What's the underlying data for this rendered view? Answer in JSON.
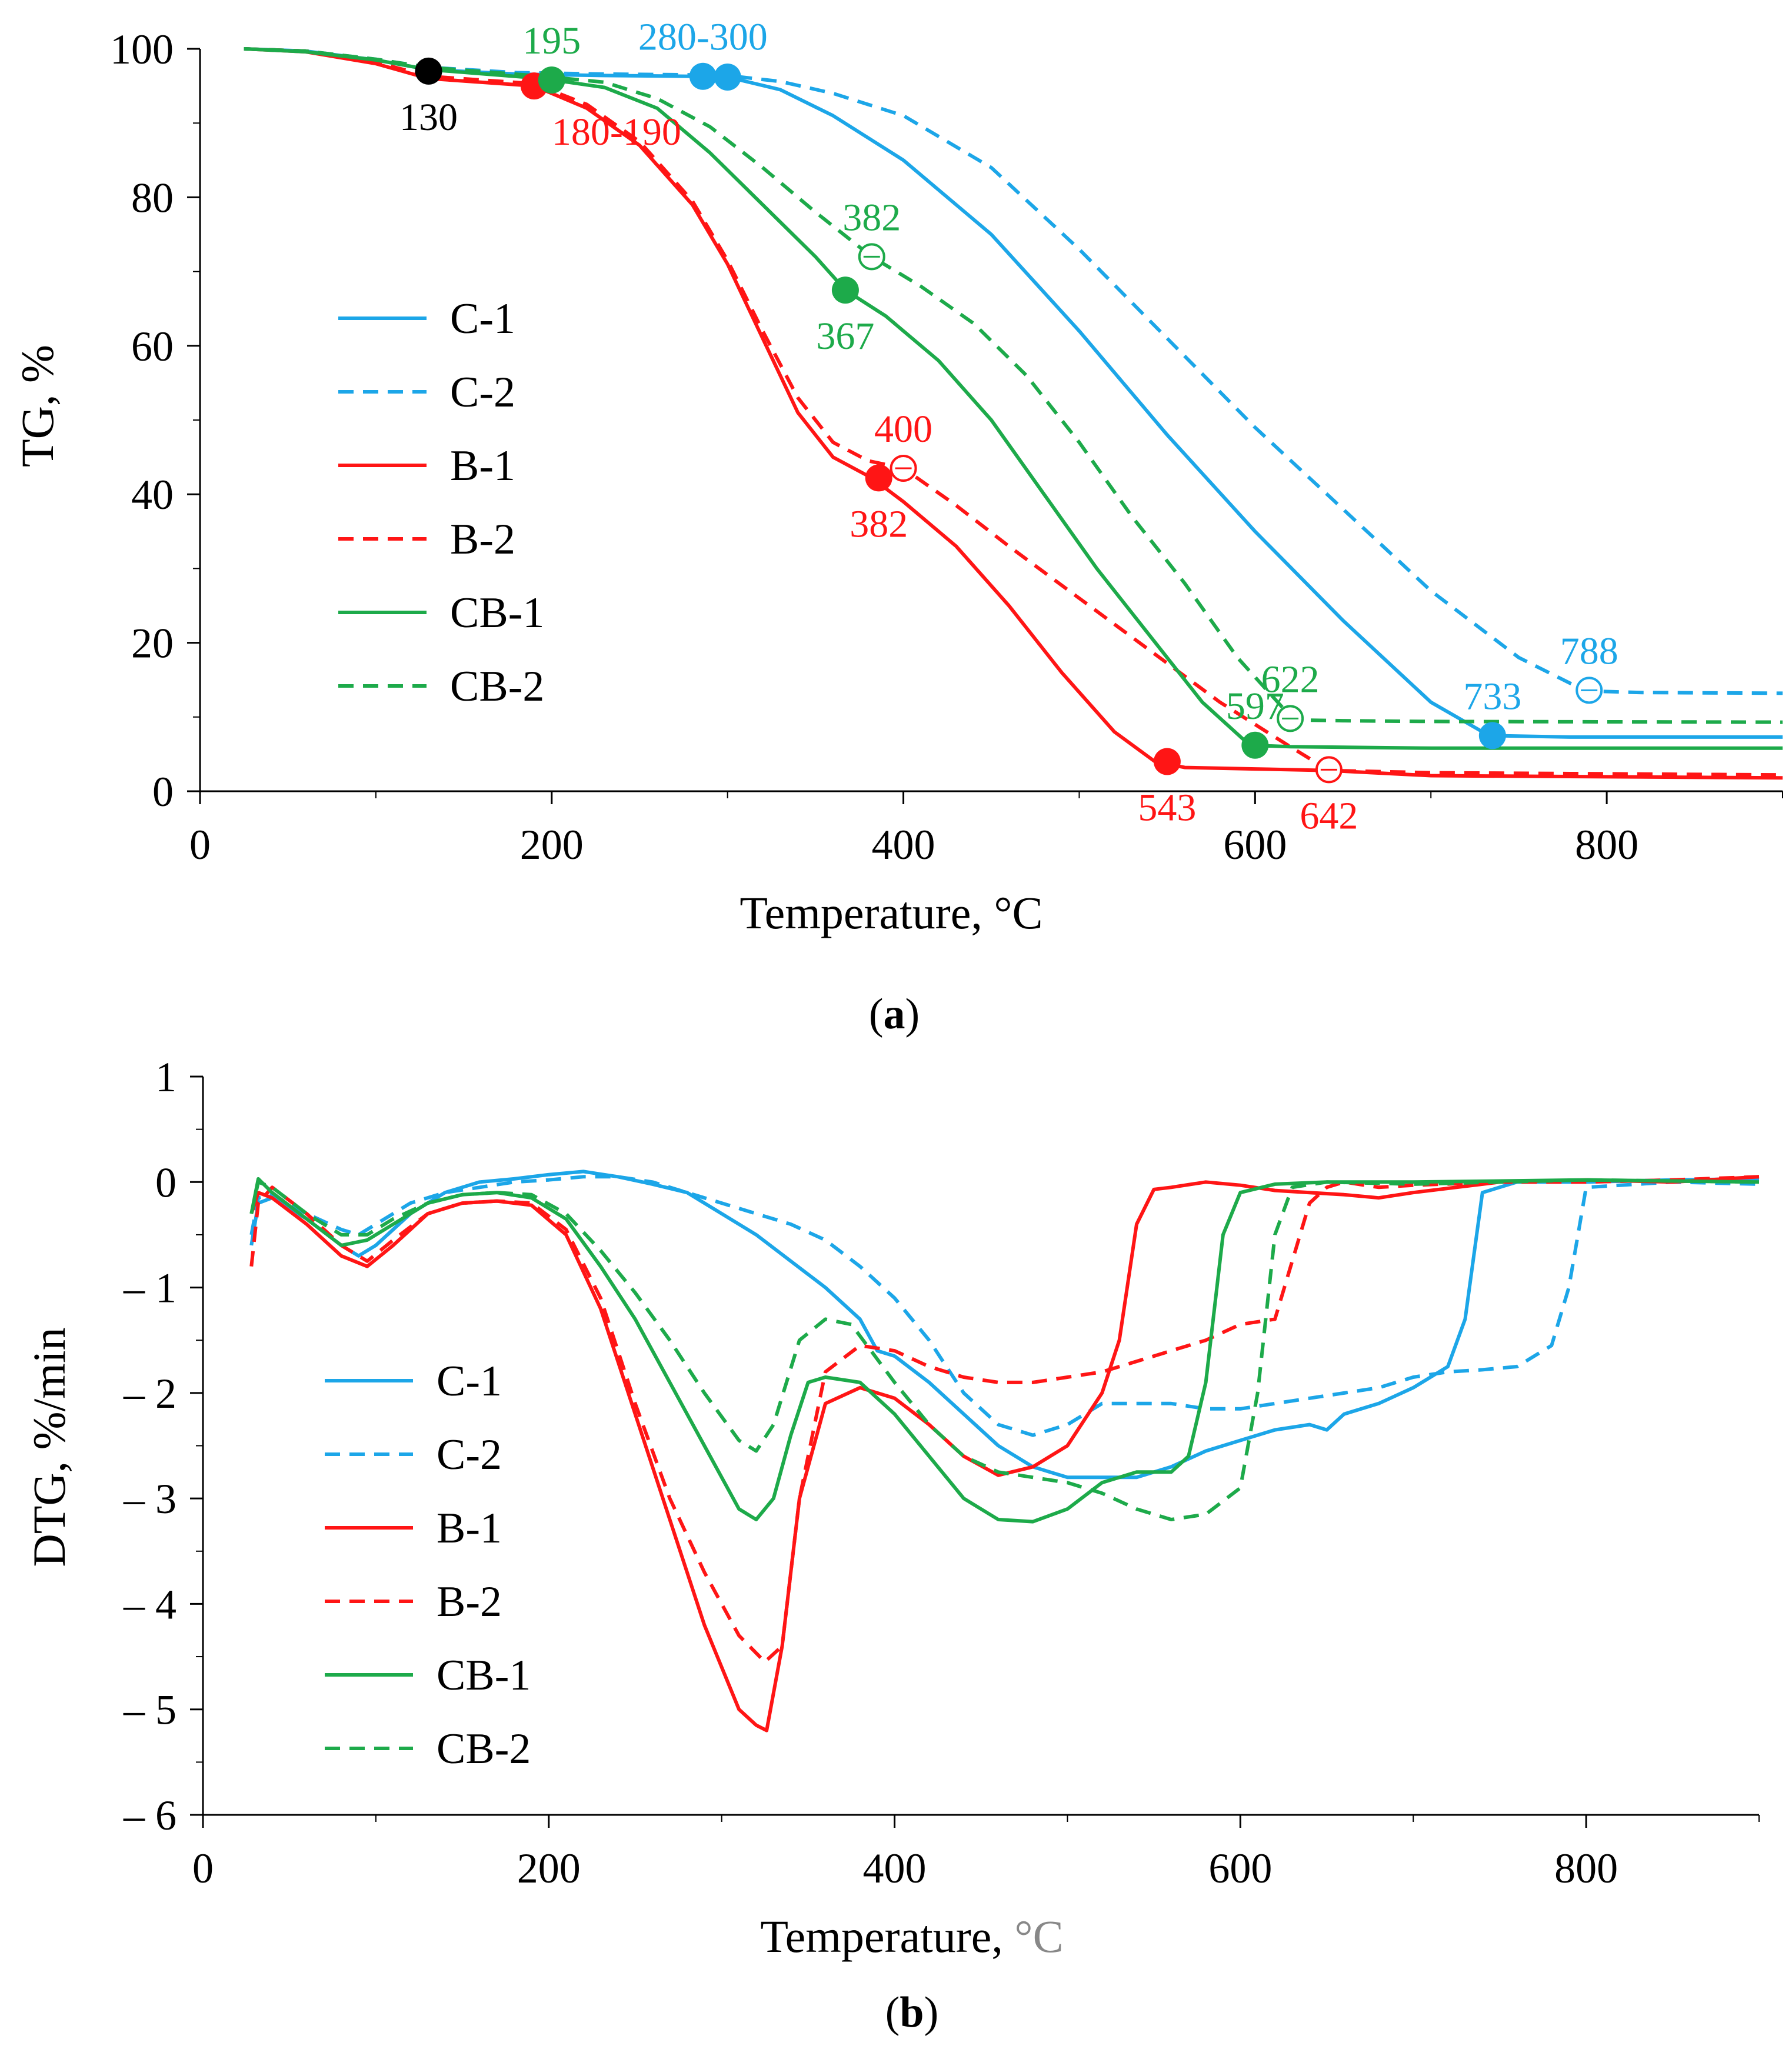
{
  "colors": {
    "C": "#1CA6E8",
    "B": "#FF1515",
    "CB": "#1DAA4A",
    "black": "#000000"
  },
  "legend": [
    "C-1",
    "C-2",
    "B-1",
    "B-2",
    "CB-1",
    "CB-2"
  ],
  "chart_data": [
    {
      "type": "line",
      "caption_letter": "a",
      "title": "",
      "xlabel": "Temperature, °C",
      "ylabel": "TG, %",
      "xlim": [
        0,
        900
      ],
      "ylim": [
        0,
        100
      ],
      "xticks": [
        0,
        200,
        400,
        600,
        800
      ],
      "yticks": [
        0,
        20,
        40,
        60,
        80,
        100
      ],
      "series": [
        {
          "name": "C-1",
          "color": "C",
          "dashed": false,
          "x": [
            25,
            60,
            100,
            130,
            180,
            230,
            280,
            300,
            330,
            360,
            400,
            450,
            500,
            550,
            600,
            650,
            700,
            733,
            780,
            900
          ],
          "y": [
            100,
            99.7,
            98.5,
            97.2,
            96.6,
            96.4,
            96.3,
            96.2,
            94.5,
            91,
            85,
            75,
            62,
            48,
            35,
            23,
            12,
            7.5,
            7.3,
            7.3
          ]
        },
        {
          "name": "C-2",
          "color": "C",
          "dashed": true,
          "x": [
            25,
            60,
            100,
            130,
            180,
            230,
            280,
            300,
            330,
            360,
            400,
            450,
            500,
            550,
            600,
            650,
            700,
            750,
            788,
            820,
            900
          ],
          "y": [
            100,
            99.7,
            98.6,
            97.5,
            96.8,
            96.6,
            96.5,
            96.4,
            95.6,
            94,
            91,
            84,
            73,
            61,
            49,
            38,
            27,
            18,
            13.5,
            13.3,
            13.2
          ]
        },
        {
          "name": "B-1",
          "color": "B",
          "dashed": false,
          "x": [
            25,
            60,
            100,
            130,
            190,
            220,
            250,
            280,
            300,
            320,
            340,
            360,
            382,
            400,
            430,
            460,
            490,
            520,
            543,
            560,
            600,
            642,
            700,
            900
          ],
          "y": [
            100,
            99.6,
            98,
            96,
            95,
            92,
            87,
            79,
            71,
            61,
            51,
            45,
            42.2,
            39,
            33,
            25,
            16,
            8,
            4,
            3.2,
            3,
            2.8,
            2.1,
            1.8
          ]
        },
        {
          "name": "B-2",
          "color": "B",
          "dashed": true,
          "x": [
            25,
            60,
            100,
            130,
            190,
            220,
            250,
            280,
            300,
            320,
            340,
            360,
            380,
            400,
            430,
            460,
            500,
            540,
            580,
            620,
            642,
            700,
            900
          ],
          "y": [
            100,
            99.7,
            98.2,
            96.3,
            95.3,
            92.5,
            87.5,
            79.5,
            71.5,
            62,
            53,
            47,
            44.5,
            43.5,
            38.5,
            33,
            26,
            19,
            12,
            6,
            2.8,
            2.5,
            2.2
          ]
        },
        {
          "name": "CB-1",
          "color": "CB",
          "dashed": false,
          "x": [
            25,
            60,
            100,
            130,
            195,
            230,
            260,
            290,
            320,
            350,
            367,
            390,
            420,
            450,
            480,
            510,
            540,
            570,
            597,
            620,
            700,
            900
          ],
          "y": [
            100,
            99.6,
            98.5,
            97.2,
            96,
            94.8,
            92,
            86,
            79,
            72,
            67.5,
            64,
            58,
            50,
            40,
            30,
            21,
            12,
            6.2,
            6,
            5.8,
            5.8
          ]
        },
        {
          "name": "CB-2",
          "color": "CB",
          "dashed": true,
          "x": [
            25,
            60,
            100,
            130,
            195,
            230,
            260,
            290,
            320,
            350,
            382,
            410,
            440,
            470,
            500,
            530,
            560,
            590,
            622,
            650,
            700,
            900
          ],
          "y": [
            100,
            99.7,
            98.6,
            97.5,
            96.3,
            95.5,
            93.3,
            89.5,
            84,
            78,
            72,
            68,
            63,
            56,
            47,
            37,
            28,
            18,
            9.6,
            9.5,
            9.4,
            9.3
          ]
        }
      ],
      "markers": [
        {
          "x": 130,
          "y": 97,
          "color": "black",
          "filled": true,
          "label": "130",
          "label_pos": "below"
        },
        {
          "x": 190,
          "y": 95,
          "color": "B",
          "filled": true,
          "label": "180-190",
          "label_pos": "below-right"
        },
        {
          "x": 200,
          "y": 95.8,
          "color": "CB",
          "filled": true,
          "label": "195",
          "label_pos": "above"
        },
        {
          "x": 286,
          "y": 96.3,
          "color": "C",
          "filled": true,
          "label": "280-300",
          "label_pos": "above"
        },
        {
          "x": 300,
          "y": 96.2,
          "color": "C",
          "filled": true,
          "label": "",
          "label_pos": "none"
        },
        {
          "x": 367,
          "y": 67.5,
          "color": "CB",
          "filled": true,
          "label": "367",
          "label_pos": "below"
        },
        {
          "x": 382,
          "y": 72,
          "color": "CB",
          "filled": false,
          "label": "382",
          "label_pos": "above"
        },
        {
          "x": 386,
          "y": 42.2,
          "color": "B",
          "filled": true,
          "label": "382",
          "label_pos": "below"
        },
        {
          "x": 400,
          "y": 43.5,
          "color": "B",
          "filled": false,
          "label": "400",
          "label_pos": "above"
        },
        {
          "x": 550,
          "y": 4,
          "color": "B",
          "filled": true,
          "label": "543",
          "label_pos": "below"
        },
        {
          "x": 600,
          "y": 6.2,
          "color": "CB",
          "filled": true,
          "label": "597",
          "label_pos": "above"
        },
        {
          "x": 620,
          "y": 9.8,
          "color": "CB",
          "filled": false,
          "label": "622",
          "label_pos": "above"
        },
        {
          "x": 642,
          "y": 2.9,
          "color": "B",
          "filled": false,
          "label": "642",
          "label_pos": "below"
        },
        {
          "x": 735,
          "y": 7.5,
          "color": "C",
          "filled": true,
          "label": "733",
          "label_pos": "above"
        },
        {
          "x": 790,
          "y": 13.6,
          "color": "C",
          "filled": false,
          "label": "788",
          "label_pos": "above"
        }
      ]
    },
    {
      "type": "line",
      "caption_letter": "b",
      "title": "",
      "xlabel": "Temperature, ",
      "xlabel_unit": "°C",
      "ylabel": "DTG, %/min",
      "xlim": [
        0,
        900
      ],
      "ylim": [
        -6,
        1
      ],
      "xticks": [
        0,
        200,
        400,
        600,
        800
      ],
      "yticks": [
        1,
        0,
        -1,
        -2,
        -3,
        -4,
        -5,
        -6
      ],
      "ytick_labels": [
        "1",
        "0",
        "– 1",
        "– 2",
        "– 3",
        "– 4",
        "– 5",
        "– 6"
      ],
      "series": [
        {
          "name": "C-1",
          "color": "C",
          "dashed": false,
          "x": [
            28,
            32,
            40,
            60,
            80,
            90,
            100,
            120,
            140,
            160,
            180,
            200,
            220,
            240,
            260,
            280,
            300,
            320,
            340,
            360,
            380,
            390,
            400,
            420,
            440,
            460,
            480,
            500,
            520,
            540,
            560,
            580,
            600,
            620,
            640,
            650,
            660,
            680,
            700,
            720,
            730,
            740,
            760,
            800,
            850,
            900
          ],
          "y": [
            -0.6,
            -0.2,
            -0.15,
            -0.35,
            -0.6,
            -0.7,
            -0.6,
            -0.3,
            -0.1,
            0,
            0.03,
            0.07,
            0.1,
            0.05,
            -0.02,
            -0.1,
            -0.3,
            -0.5,
            -0.75,
            -1.0,
            -1.3,
            -1.6,
            -1.65,
            -1.9,
            -2.2,
            -2.5,
            -2.7,
            -2.8,
            -2.8,
            -2.8,
            -2.7,
            -2.55,
            -2.45,
            -2.35,
            -2.3,
            -2.35,
            -2.2,
            -2.1,
            -1.95,
            -1.75,
            -1.3,
            -0.1,
            0,
            0,
            0.02,
            0.03
          ]
        },
        {
          "name": "C-2",
          "color": "C",
          "dashed": true,
          "x": [
            28,
            32,
            40,
            60,
            80,
            90,
            100,
            120,
            140,
            160,
            180,
            200,
            220,
            240,
            260,
            280,
            300,
            320,
            340,
            360,
            380,
            400,
            420,
            440,
            460,
            480,
            500,
            520,
            540,
            560,
            580,
            600,
            620,
            640,
            660,
            680,
            700,
            720,
            740,
            760,
            780,
            790,
            800,
            850,
            900
          ],
          "y": [
            -0.5,
            -0.15,
            -0.12,
            -0.3,
            -0.45,
            -0.5,
            -0.4,
            -0.2,
            -0.1,
            -0.05,
            0,
            0.02,
            0.05,
            0.05,
            0,
            -0.1,
            -0.2,
            -0.3,
            -0.4,
            -0.55,
            -0.8,
            -1.1,
            -1.5,
            -2.0,
            -2.3,
            -2.4,
            -2.3,
            -2.1,
            -2.1,
            -2.1,
            -2.15,
            -2.15,
            -2.1,
            -2.05,
            -2.0,
            -1.95,
            -1.85,
            -1.8,
            -1.78,
            -1.75,
            -1.55,
            -1.0,
            -0.05,
            0,
            -0.02
          ]
        },
        {
          "name": "B-1",
          "color": "B",
          "dashed": false,
          "x": [
            28,
            32,
            40,
            60,
            80,
            95,
            110,
            130,
            150,
            170,
            190,
            210,
            230,
            250,
            270,
            290,
            300,
            310,
            320,
            326,
            335,
            345,
            360,
            380,
            400,
            420,
            440,
            460,
            480,
            500,
            520,
            530,
            540,
            550,
            560,
            580,
            600,
            620,
            640,
            660,
            680,
            700,
            750,
            800,
            850,
            900
          ],
          "y": [
            -0.3,
            -0.1,
            -0.15,
            -0.4,
            -0.7,
            -0.8,
            -0.6,
            -0.3,
            -0.2,
            -0.18,
            -0.22,
            -0.5,
            -1.2,
            -2.2,
            -3.2,
            -4.2,
            -4.6,
            -5.0,
            -5.15,
            -5.2,
            -4.4,
            -3.0,
            -2.1,
            -1.95,
            -2.05,
            -2.3,
            -2.6,
            -2.78,
            -2.7,
            -2.5,
            -2.0,
            -1.5,
            -0.4,
            -0.07,
            -0.05,
            0,
            -0.03,
            -0.08,
            -0.1,
            -0.12,
            -0.15,
            -0.1,
            0,
            0.02,
            0,
            0.05
          ]
        },
        {
          "name": "B-2",
          "color": "B",
          "dashed": true,
          "x": [
            28,
            32,
            40,
            60,
            80,
            95,
            110,
            130,
            150,
            170,
            190,
            210,
            230,
            250,
            270,
            290,
            310,
            325,
            335,
            345,
            360,
            380,
            400,
            420,
            440,
            460,
            480,
            500,
            520,
            540,
            560,
            580,
            600,
            620,
            640,
            650,
            660,
            680,
            700,
            750,
            800,
            850,
            900
          ],
          "y": [
            -0.8,
            -0.2,
            -0.05,
            -0.3,
            -0.6,
            -0.75,
            -0.55,
            -0.3,
            -0.2,
            -0.18,
            -0.2,
            -0.45,
            -1.1,
            -2.1,
            -3.0,
            -3.7,
            -4.3,
            -4.55,
            -4.4,
            -3.0,
            -1.8,
            -1.55,
            -1.6,
            -1.75,
            -1.85,
            -1.9,
            -1.9,
            -1.85,
            -1.8,
            -1.7,
            -1.6,
            -1.5,
            -1.35,
            -1.3,
            -0.2,
            -0.05,
            0,
            -0.05,
            -0.03,
            0,
            0,
            0.02,
            0.05
          ]
        },
        {
          "name": "CB-1",
          "color": "CB",
          "dashed": false,
          "x": [
            28,
            32,
            40,
            60,
            80,
            95,
            110,
            130,
            150,
            170,
            190,
            210,
            230,
            250,
            270,
            290,
            310,
            320,
            330,
            340,
            350,
            360,
            380,
            400,
            420,
            440,
            460,
            480,
            500,
            520,
            540,
            560,
            570,
            580,
            590,
            600,
            620,
            650,
            700,
            800,
            900
          ],
          "y": [
            -0.3,
            0.03,
            -0.1,
            -0.35,
            -0.6,
            -0.55,
            -0.4,
            -0.2,
            -0.12,
            -0.1,
            -0.15,
            -0.35,
            -0.8,
            -1.3,
            -1.9,
            -2.5,
            -3.1,
            -3.2,
            -3.0,
            -2.4,
            -1.9,
            -1.85,
            -1.9,
            -2.2,
            -2.6,
            -3.0,
            -3.2,
            -3.22,
            -3.1,
            -2.85,
            -2.75,
            -2.75,
            -2.6,
            -1.9,
            -0.5,
            -0.1,
            -0.02,
            0,
            0,
            0.02,
            0
          ]
        },
        {
          "name": "CB-2",
          "color": "CB",
          "dashed": true,
          "x": [
            28,
            32,
            40,
            60,
            80,
            95,
            110,
            130,
            150,
            170,
            190,
            210,
            230,
            250,
            270,
            290,
            310,
            320,
            330,
            345,
            360,
            375,
            400,
            420,
            440,
            460,
            480,
            500,
            520,
            540,
            560,
            580,
            600,
            610,
            620,
            630,
            650,
            700,
            800,
            900
          ],
          "y": [
            -0.3,
            0,
            -0.05,
            -0.3,
            -0.5,
            -0.5,
            -0.35,
            -0.2,
            -0.12,
            -0.1,
            -0.12,
            -0.3,
            -0.65,
            -1.05,
            -1.5,
            -2.0,
            -2.45,
            -2.55,
            -2.3,
            -1.5,
            -1.3,
            -1.35,
            -1.9,
            -2.3,
            -2.6,
            -2.75,
            -2.8,
            -2.85,
            -2.95,
            -3.1,
            -3.2,
            -3.15,
            -2.9,
            -2.0,
            -0.5,
            -0.05,
            0,
            -0.02,
            0.02,
            0
          ]
        }
      ]
    }
  ]
}
